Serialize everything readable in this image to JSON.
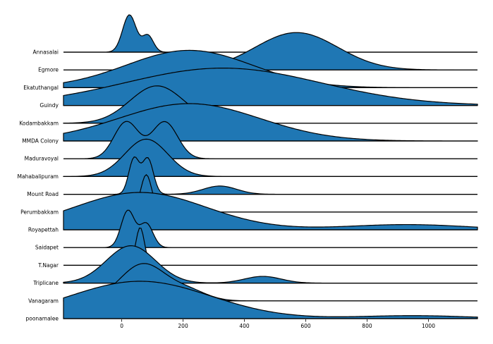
{
  "chart_data": {
    "type": "area",
    "title": "",
    "xlabel": "",
    "ylabel": "",
    "xlim": [
      -190,
      1160
    ],
    "x_ticks": [
      0,
      200,
      400,
      600,
      800,
      1000
    ],
    "x_tick_labels": [
      "0",
      "200",
      "400",
      "600",
      "800",
      "1000"
    ],
    "grid": false,
    "fill_color": "#1f77b4",
    "edge_color": "#000000",
    "series": [
      {
        "name": "Annasalai",
        "components": [
          [
            25,
            22,
            1.0
          ],
          [
            85,
            18,
            0.45
          ]
        ]
      },
      {
        "name": "Egmore",
        "components": [
          [
            570,
            135,
            1.0
          ]
        ]
      },
      {
        "name": "Ekatuthangal",
        "components": [
          [
            220,
            205,
            1.0
          ]
        ]
      },
      {
        "name": "Guindy",
        "components": [
          [
            330,
            320,
            1.0
          ]
        ]
      },
      {
        "name": "Kodambakkam",
        "components": [
          [
            115,
            88,
            1.0
          ]
        ]
      },
      {
        "name": "MMDA Colony",
        "components": [
          [
            220,
            230,
            1.0
          ]
        ]
      },
      {
        "name": "Maduravoyal",
        "components": [
          [
            15,
            40,
            1.0
          ],
          [
            140,
            42,
            1.0
          ]
        ]
      },
      {
        "name": "Mahabalipuram",
        "components": [
          [
            80,
            70,
            1.0
          ]
        ]
      },
      {
        "name": "Mount Road",
        "components": [
          [
            40,
            17,
            0.95
          ],
          [
            85,
            18,
            0.95
          ],
          [
            320,
            55,
            0.22
          ]
        ]
      },
      {
        "name": "Perumbakkam",
        "components": [
          [
            80,
            18,
            1.0
          ]
        ]
      },
      {
        "name": "Royapettah",
        "components": [
          [
            60,
            215,
            1.0
          ],
          [
            930,
            200,
            0.14
          ]
        ]
      },
      {
        "name": "Saidapet",
        "components": [
          [
            20,
            22,
            1.0
          ],
          [
            80,
            22,
            0.65
          ]
        ]
      },
      {
        "name": "T.Nagar",
        "components": [
          [
            60,
            14,
            1.0
          ]
        ]
      },
      {
        "name": "Triplicane",
        "components": [
          [
            30,
            80,
            1.0
          ],
          [
            460,
            60,
            0.18
          ]
        ]
      },
      {
        "name": "Vanagaram",
        "components": [
          [
            70,
            75,
            1.0
          ],
          [
            220,
            60,
            0.25
          ]
        ]
      },
      {
        "name": "poonamalee",
        "components": [
          [
            60,
            230,
            1.0
          ],
          [
            950,
            180,
            0.08
          ]
        ]
      }
    ]
  }
}
